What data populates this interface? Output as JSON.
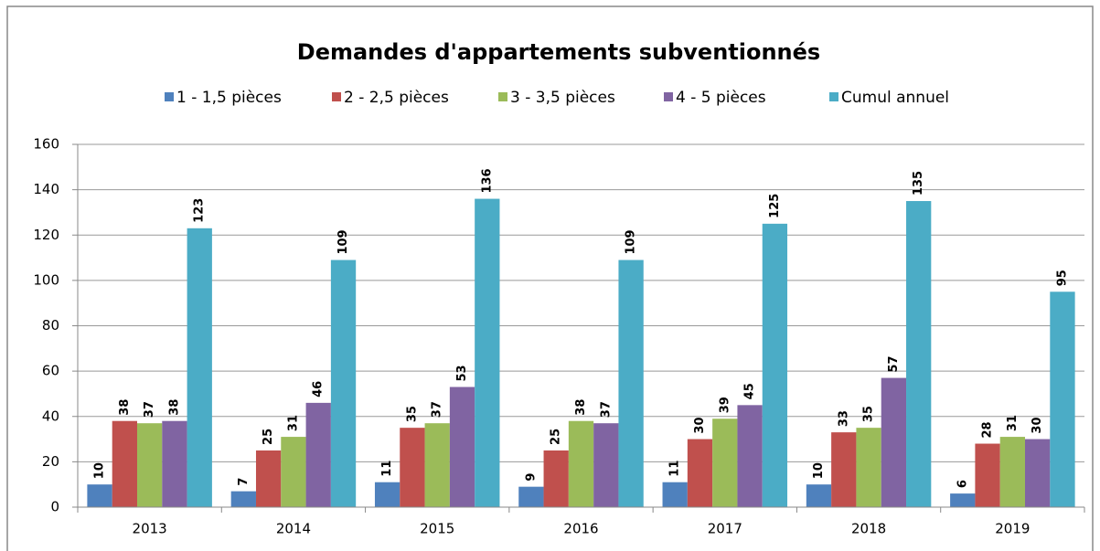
{
  "chart_data": {
    "type": "bar",
    "title": "Demandes d'appartements subventionnés",
    "categories": [
      "2013",
      "2014",
      "2015",
      "2016",
      "2017",
      "2018",
      "2019"
    ],
    "series": [
      {
        "name": "1 - 1,5 pièces",
        "color": "#4f81bd",
        "values": [
          10,
          7,
          11,
          9,
          11,
          10,
          6
        ]
      },
      {
        "name": "2 - 2,5 pièces",
        "color": "#c0504d",
        "values": [
          38,
          25,
          35,
          25,
          30,
          33,
          28
        ]
      },
      {
        "name": "3 - 3,5 pièces",
        "color": "#9bbb59",
        "values": [
          37,
          31,
          37,
          38,
          39,
          35,
          31
        ]
      },
      {
        "name": "4 - 5 pièces",
        "color": "#8064a2",
        "values": [
          38,
          46,
          53,
          37,
          45,
          57,
          30
        ]
      },
      {
        "name": "Cumul annuel",
        "color": "#4bacc6",
        "values": [
          123,
          109,
          136,
          109,
          125,
          135,
          95
        ]
      }
    ],
    "ylim": [
      0,
      160
    ],
    "yticks": [
      0,
      20,
      40,
      60,
      80,
      100,
      120,
      140,
      160
    ],
    "grid": true,
    "legend": "top"
  }
}
